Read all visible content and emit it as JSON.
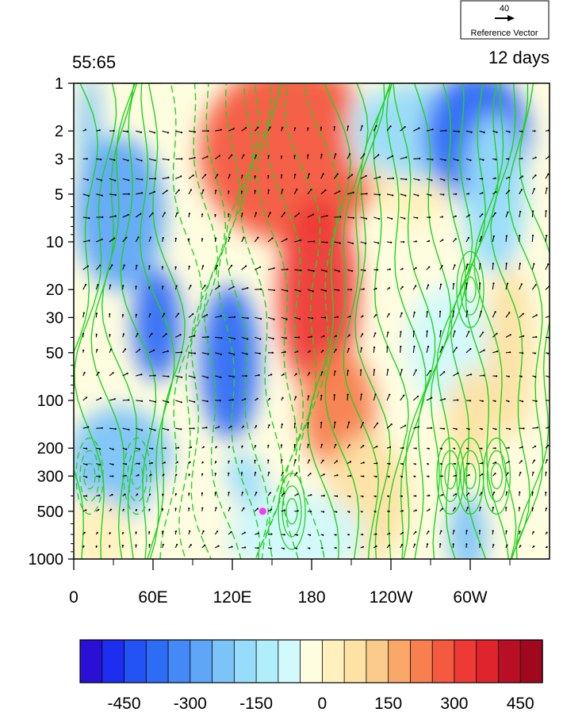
{
  "chart_data": {
    "type": "heatmap",
    "title_left": "55:65",
    "title_right": "12 days",
    "reference_vector": {
      "value": "40",
      "label": "Reference Vector"
    },
    "x_ticks": [
      "0",
      "60E",
      "120E",
      "180",
      "120W",
      "60W"
    ],
    "y_ticks": [
      "1",
      "2",
      "3",
      "5",
      "10",
      "20",
      "30",
      "50",
      "100",
      "200",
      "300",
      "500",
      "1000"
    ],
    "y_scale": "log",
    "y_reversed": true,
    "colorbar": {
      "tick_labels": [
        "-450",
        "-300",
        "-150",
        "0",
        "150",
        "300",
        "450"
      ],
      "colors": [
        "#2a0fd4",
        "#1e2ef0",
        "#2352f5",
        "#2f6cf5",
        "#4489f6",
        "#5fa6f7",
        "#7cc3f8",
        "#97dcfa",
        "#b0eefb",
        "#d2f9fb",
        "#fffde0",
        "#fff0bd",
        "#fde2a3",
        "#fbcb8b",
        "#f9a86a",
        "#f77f50",
        "#f35a3f",
        "#ee3a35",
        "#e0242e",
        "#b80f24",
        "#a00820"
      ],
      "range": [
        -600,
        600
      ]
    },
    "fill_regions": [
      {
        "cx": 12,
        "cy": 1.1,
        "rx": 8,
        "ry": 2.2,
        "value": -250
      },
      {
        "cx": 35,
        "cy": 3.4,
        "rx": 34,
        "ry": 1.9,
        "value": -300
      },
      {
        "cx": 63,
        "cy": 6.2,
        "rx": 18,
        "ry": 1.5,
        "value": -420
      },
      {
        "cx": 35,
        "cy": 9.5,
        "rx": 40,
        "ry": 1.5,
        "value": -230
      },
      {
        "cx": 118,
        "cy": 7.2,
        "rx": 22,
        "ry": 1.9,
        "value": -380
      },
      {
        "cx": 128,
        "cy": 10.8,
        "rx": 18,
        "ry": 1.6,
        "value": -200
      },
      {
        "cx": 165,
        "cy": 1.8,
        "rx": 70,
        "ry": 2.6,
        "value": 330
      },
      {
        "cx": 185,
        "cy": 5.2,
        "rx": 30,
        "ry": 2.4,
        "value": 420
      },
      {
        "cx": 200,
        "cy": 8.2,
        "rx": 28,
        "ry": 1.4,
        "value": 260
      },
      {
        "cx": 222,
        "cy": 10.6,
        "rx": 32,
        "ry": 1.9,
        "value": 120
      },
      {
        "cx": 222,
        "cy": 1.0,
        "rx": 14,
        "ry": 1.3,
        "value": -60
      },
      {
        "cx": 258,
        "cy": 1.8,
        "rx": 36,
        "ry": 1.9,
        "value": 80
      },
      {
        "cx": 260,
        "cy": 1.0,
        "rx": 45,
        "ry": 1.6,
        "value": -150
      },
      {
        "cx": 305,
        "cy": 1.2,
        "rx": 40,
        "ry": 2.2,
        "value": -380
      },
      {
        "cx": 318,
        "cy": 3.0,
        "rx": 24,
        "ry": 2.0,
        "value": -200
      },
      {
        "cx": 285,
        "cy": 6.8,
        "rx": 34,
        "ry": 1.6,
        "value": -60
      },
      {
        "cx": 330,
        "cy": 7.0,
        "rx": 18,
        "ry": 2.2,
        "value": 140
      },
      {
        "cx": 300,
        "cy": 8.4,
        "rx": 18,
        "ry": 1.2,
        "value": 120
      },
      {
        "cx": 298,
        "cy": 11.5,
        "rx": 14,
        "ry": 1.5,
        "value": -230
      },
      {
        "cx": 170,
        "cy": 11.5,
        "rx": 50,
        "ry": 1.6,
        "value": -80
      },
      {
        "cx": 20,
        "cy": 11.5,
        "rx": 22,
        "ry": 1.4,
        "value": 70
      },
      {
        "cx": 90,
        "cy": 11.0,
        "rx": 35,
        "ry": 1.2,
        "value": 20
      }
    ],
    "background_value": -10,
    "marker": {
      "x": 143,
      "level": 500,
      "color": "#ff33ff"
    }
  }
}
